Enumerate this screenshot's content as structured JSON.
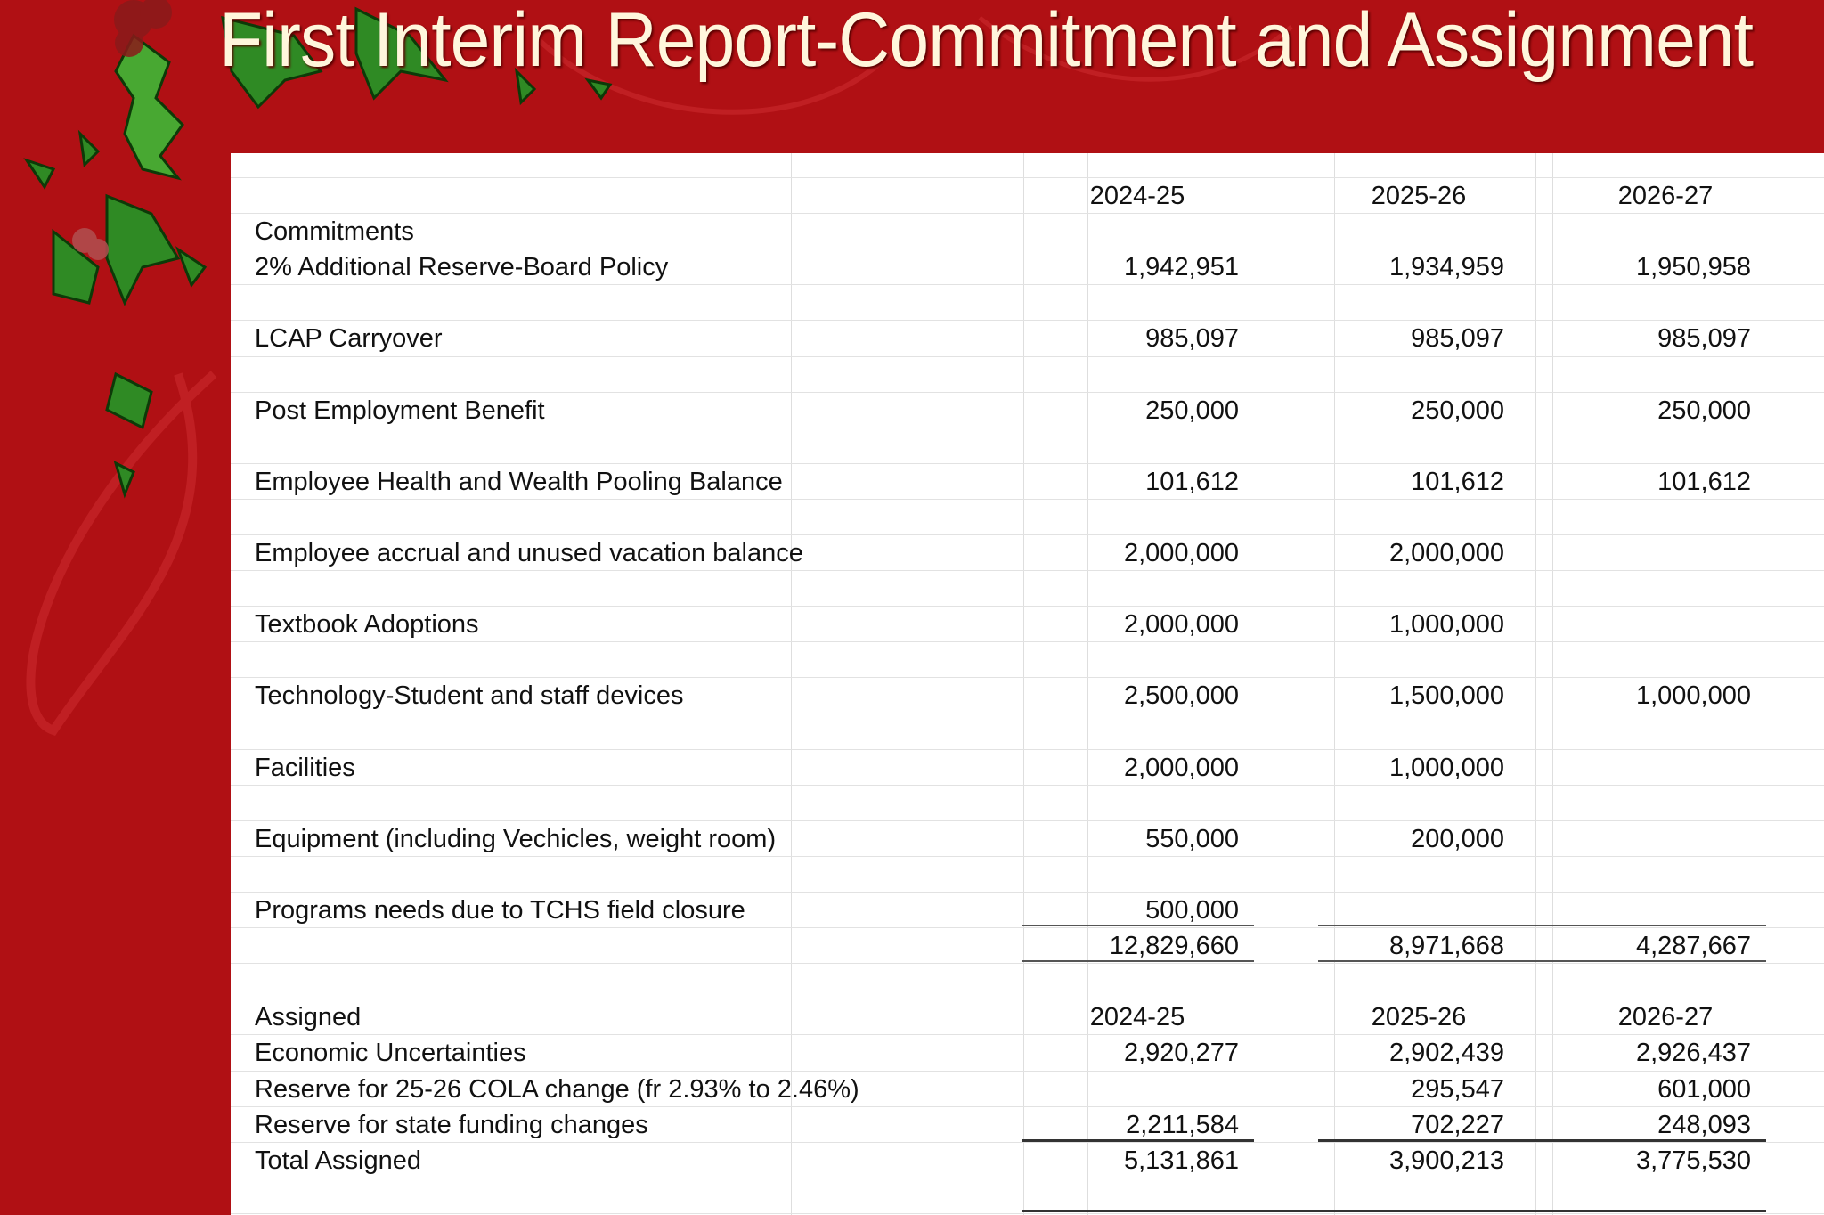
{
  "title": "First Interim Report-Commitment and Assignment",
  "colors": {
    "background": "#b01014",
    "title": "#fff6dc",
    "holly": "#2f8a24",
    "berry": "#8a1a1a"
  },
  "columns": [
    "2024-25",
    "2025-26",
    "2026-27"
  ],
  "commitments": {
    "heading": "Commitments",
    "rows": [
      {
        "label": "2% Additional Reserve-Board Policy",
        "values": [
          "1,942,951",
          "1,934,959",
          "1,950,958"
        ]
      },
      {
        "label": "LCAP Carryover",
        "values": [
          "985,097",
          "985,097",
          "985,097"
        ]
      },
      {
        "label": "Post Employment Benefit",
        "values": [
          "250,000",
          "250,000",
          "250,000"
        ]
      },
      {
        "label": "Employee Health and Wealth Pooling Balance",
        "values": [
          "101,612",
          "101,612",
          "101,612"
        ]
      },
      {
        "label": "Employee accrual and unused vacation balance",
        "values": [
          "2,000,000",
          "2,000,000",
          ""
        ]
      },
      {
        "label": "Textbook Adoptions",
        "values": [
          "2,000,000",
          "1,000,000",
          ""
        ]
      },
      {
        "label": "Technology-Student and staff devices",
        "values": [
          "2,500,000",
          "1,500,000",
          "1,000,000"
        ]
      },
      {
        "label": "Facilities",
        "values": [
          "2,000,000",
          "1,000,000",
          ""
        ]
      },
      {
        "label": "Equipment (including Vechicles, weight room)",
        "values": [
          "550,000",
          "200,000",
          ""
        ]
      },
      {
        "label": " Programs needs due to TCHS field closure",
        "values": [
          "500,000",
          "",
          ""
        ]
      }
    ],
    "total": [
      "12,829,660",
      "8,971,668",
      "4,287,667"
    ]
  },
  "assigned": {
    "heading": "Assigned",
    "columns": [
      "2024-25",
      "2025-26",
      "2026-27"
    ],
    "rows": [
      {
        "label": "Economic Uncertainties",
        "values": [
          "2,920,277",
          "2,902,439",
          "2,926,437"
        ]
      },
      {
        "label": "Reserve for 25-26 COLA change (fr 2.93% to 2.46%)",
        "values": [
          "",
          "295,547",
          "601,000"
        ]
      },
      {
        "label": "Reserve for state funding changes",
        "values": [
          "2,211,584",
          "702,227",
          "248,093"
        ]
      }
    ],
    "total_label": "Total Assigned",
    "total": [
      "5,131,861",
      "3,900,213",
      "3,775,530"
    ]
  }
}
